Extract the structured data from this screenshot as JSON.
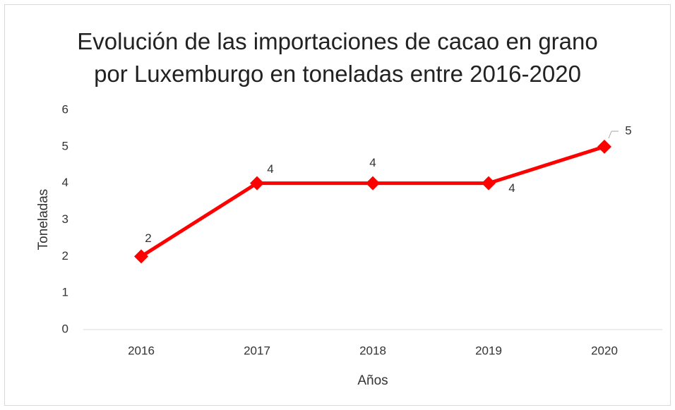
{
  "chart_data": {
    "type": "line",
    "title": "Evolución de las importaciones de cacao en grano por Luxemburgo en toneladas entre 2016-2020",
    "x_label": "Años",
    "y_label": "Toneladas",
    "categories": [
      "2016",
      "2017",
      "2018",
      "2019",
      "2020"
    ],
    "series": [
      {
        "name": "Toneladas",
        "color": "#ff0000",
        "values": [
          2,
          4,
          4,
          4,
          5
        ]
      }
    ],
    "ylim": [
      0,
      6
    ],
    "yticks": [
      0,
      1,
      2,
      3,
      4,
      5,
      6
    ],
    "grid": false
  }
}
